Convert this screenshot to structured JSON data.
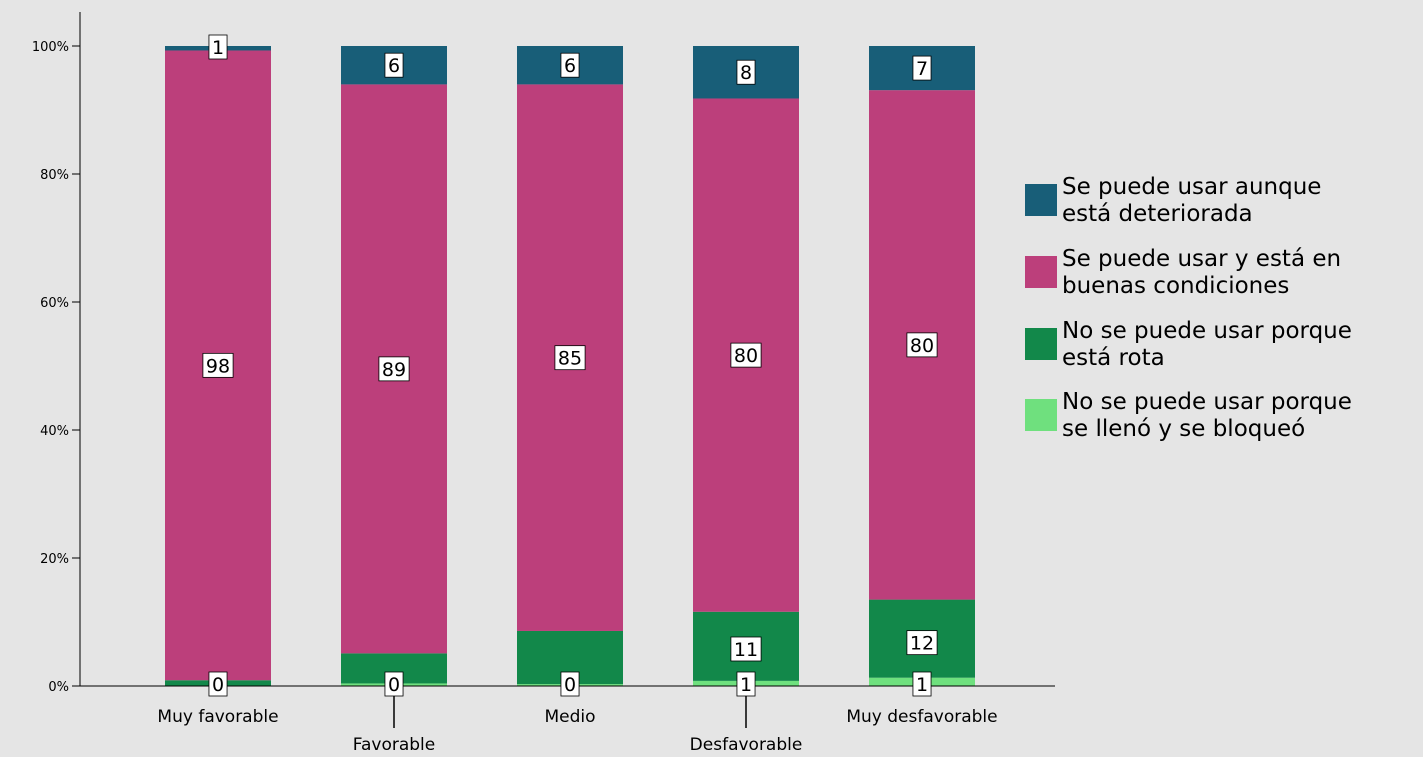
{
  "chart_data": {
    "type": "bar",
    "stacked": true,
    "percent_stacked": true,
    "title": "",
    "xlabel": "",
    "ylabel": "",
    "ylim": [
      0,
      100
    ],
    "y_ticks": [
      "0%",
      "20%",
      "40%",
      "60%",
      "80%",
      "100%"
    ],
    "grid": false,
    "legend_position": "right",
    "categories": [
      "Muy favorable",
      "Favorable",
      "Medio",
      "Desfavorable",
      "Muy desfavorable"
    ],
    "series": [
      {
        "name": "No se puede usar porque se llenó y se bloqueó",
        "color": "#6fe07e",
        "values": [
          0.0,
          0.4,
          0.3,
          0.8,
          1.3
        ],
        "labels": [
          "0",
          "0",
          "0",
          "1",
          "1"
        ]
      },
      {
        "name": "No se puede usar porque está rota",
        "color": "#12884a",
        "values": [
          0.9,
          4.7,
          8.3,
          10.8,
          12.2
        ],
        "labels": [
          "",
          "",
          "",
          "11",
          "12"
        ]
      },
      {
        "name": "Se puede usar y está en buenas condiciones",
        "color": "#bc3f7b",
        "values": [
          98.4,
          88.9,
          85.4,
          80.2,
          79.6
        ],
        "labels": [
          "98",
          "89",
          "85",
          "80",
          "80"
        ]
      },
      {
        "name": "Se puede usar aunque está deteriorada",
        "color": "#185e78",
        "values": [
          0.7,
          6.0,
          6.0,
          8.2,
          6.9
        ],
        "labels": [
          "1",
          "6",
          "6",
          "8",
          "7"
        ]
      }
    ],
    "legend_order": [
      3,
      2,
      1,
      0
    ]
  }
}
